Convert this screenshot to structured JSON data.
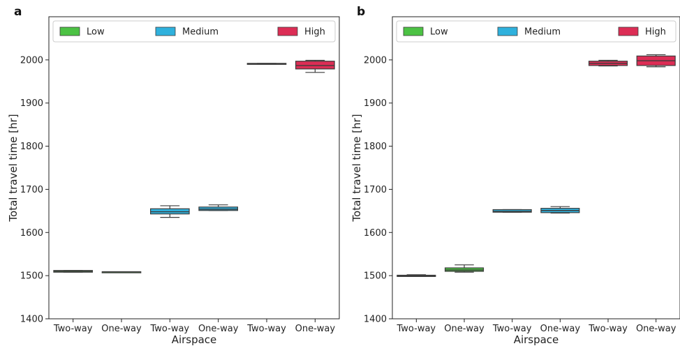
{
  "chart_data": [
    {
      "type": "box",
      "panel_label": "a",
      "xlabel": "Airspace",
      "ylabel": "Total travel time [hr]",
      "ylim": [
        1400,
        2100
      ],
      "yticks": [
        1400,
        1500,
        1600,
        1700,
        1800,
        1900,
        2000
      ],
      "categories": [
        "Two-way",
        "One-way",
        "Two-way",
        "One-way",
        "Two-way",
        "One-way"
      ],
      "legend": {
        "position": "top",
        "entries": [
          "Low",
          "Medium",
          "High"
        ]
      },
      "boxes": [
        {
          "category": "Two-way",
          "group": "Low",
          "min": 1508,
          "q1": 1508,
          "median": 1510,
          "q3": 1512,
          "max": 1512
        },
        {
          "category": "One-way",
          "group": "Low",
          "min": 1509,
          "q1": 1509,
          "median": 1509,
          "q3": 1509,
          "max": 1509
        },
        {
          "category": "Two-way",
          "group": "Medium",
          "min": 1635,
          "q1": 1643,
          "median": 1648,
          "q3": 1655,
          "max": 1662
        },
        {
          "category": "One-way",
          "group": "Medium",
          "min": 1651,
          "q1": 1651,
          "median": 1654,
          "q3": 1659,
          "max": 1664
        },
        {
          "category": "Two-way",
          "group": "High",
          "min": 1990,
          "q1": 1990,
          "median": 1991,
          "q3": 1992,
          "max": 1992
        },
        {
          "category": "One-way",
          "group": "High",
          "min": 1971,
          "q1": 1979,
          "median": 1987,
          "q3": 1997,
          "max": 1999
        }
      ]
    },
    {
      "type": "box",
      "panel_label": "b",
      "xlabel": "Airspace",
      "ylabel": "Total travel time [hr]",
      "ylim": [
        1400,
        2100
      ],
      "yticks": [
        1400,
        1500,
        1600,
        1700,
        1800,
        1900,
        2000
      ],
      "categories": [
        "Two-way",
        "One-way",
        "Two-way",
        "One-way",
        "Two-way",
        "One-way"
      ],
      "legend": {
        "position": "top",
        "entries": [
          "Low",
          "Medium",
          "High"
        ]
      },
      "boxes": [
        {
          "category": "Two-way",
          "group": "Low",
          "min": 1498,
          "q1": 1498,
          "median": 1499,
          "q3": 1501,
          "max": 1502
        },
        {
          "category": "One-way",
          "group": "Low",
          "min": 1508,
          "q1": 1510,
          "median": 1513,
          "q3": 1518,
          "max": 1525
        },
        {
          "category": "Two-way",
          "group": "Medium",
          "min": 1647,
          "q1": 1647,
          "median": 1649,
          "q3": 1653,
          "max": 1653
        },
        {
          "category": "One-way",
          "group": "Medium",
          "min": 1645,
          "q1": 1646,
          "median": 1651,
          "q3": 1656,
          "max": 1660
        },
        {
          "category": "Two-way",
          "group": "High",
          "min": 1986,
          "q1": 1987,
          "median": 1992,
          "q3": 1997,
          "max": 1999
        },
        {
          "category": "One-way",
          "group": "High",
          "min": 1984,
          "q1": 1987,
          "median": 1998,
          "q3": 2009,
          "max": 2012
        }
      ]
    }
  ],
  "colors": {
    "Low": "#4cc244",
    "Medium": "#2fb1dd",
    "High": "#dc2d55",
    "box_edge": "#3c3c3c",
    "axis": "#222222",
    "legend_frame": "#cccccc"
  }
}
